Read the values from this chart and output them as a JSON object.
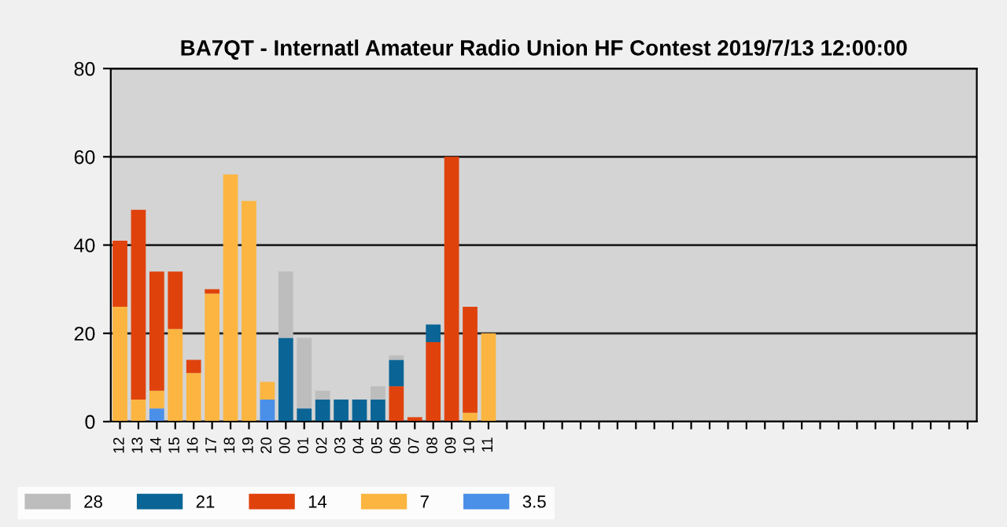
{
  "chart_data": {
    "type": "bar",
    "title": "BA7QT - Internatl Amateur Radio Union HF Contest 2019/7/13 12:00:00",
    "categories": [
      "12",
      "13",
      "14",
      "15",
      "16",
      "17",
      "18",
      "19",
      "20",
      "00",
      "01",
      "02",
      "03",
      "04",
      "05",
      "06",
      "07",
      "08",
      "09",
      "10",
      "11",
      null,
      null,
      null,
      null,
      null,
      null,
      null,
      null,
      null,
      null,
      null,
      null,
      null,
      null,
      null,
      null,
      null,
      null,
      null,
      null,
      null,
      null,
      null,
      null,
      null,
      null
    ],
    "stacked": true,
    "series": [
      {
        "name": "3.5",
        "color": "#4a90e8",
        "values": [
          0,
          0,
          3,
          0,
          0,
          0,
          0,
          0,
          5,
          0,
          0,
          0,
          0,
          0,
          0,
          0,
          0,
          0,
          0,
          0,
          0,
          null,
          null,
          null,
          null,
          null,
          null,
          null,
          null,
          null,
          null,
          null,
          null,
          null,
          null,
          null,
          null,
          null,
          null,
          null,
          null,
          null,
          null,
          null,
          null,
          null,
          null
        ]
      },
      {
        "name": "7",
        "color": "#fbb540",
        "values": [
          26,
          5,
          4,
          21,
          11,
          29,
          56,
          50,
          4,
          0,
          0,
          0,
          0,
          0,
          0,
          0,
          0,
          0,
          0,
          2,
          20,
          null,
          null,
          null,
          null,
          null,
          null,
          null,
          null,
          null,
          null,
          null,
          null,
          null,
          null,
          null,
          null,
          null,
          null,
          null,
          null,
          null,
          null,
          null,
          null,
          null,
          null
        ]
      },
      {
        "name": "14",
        "color": "#e0420c",
        "values": [
          15,
          43,
          27,
          13,
          3,
          1,
          0,
          0,
          0,
          0,
          0,
          0,
          0,
          0,
          0,
          8,
          1,
          18,
          60,
          24,
          0,
          null,
          null,
          null,
          null,
          null,
          null,
          null,
          null,
          null,
          null,
          null,
          null,
          null,
          null,
          null,
          null,
          null,
          null,
          null,
          null,
          null,
          null,
          null,
          null,
          null,
          null
        ]
      },
      {
        "name": "21",
        "color": "#0a6596",
        "values": [
          0,
          0,
          0,
          0,
          0,
          0,
          0,
          0,
          0,
          19,
          3,
          5,
          5,
          5,
          5,
          6,
          0,
          4,
          0,
          0,
          0,
          null,
          null,
          null,
          null,
          null,
          null,
          null,
          null,
          null,
          null,
          null,
          null,
          null,
          null,
          null,
          null,
          null,
          null,
          null,
          null,
          null,
          null,
          null,
          null,
          null,
          null
        ]
      },
      {
        "name": "28",
        "color": "#bdbdbd",
        "values": [
          0,
          0,
          0,
          0,
          0,
          0,
          0,
          0,
          0,
          15,
          16,
          2,
          0,
          0,
          3,
          1,
          0,
          0,
          0,
          0,
          0,
          null,
          null,
          null,
          null,
          null,
          null,
          null,
          null,
          null,
          null,
          null,
          null,
          null,
          null,
          null,
          null,
          null,
          null,
          null,
          null,
          null,
          null,
          null,
          null,
          null,
          null
        ]
      }
    ],
    "ylim": [
      0,
      80
    ],
    "yticks": [
      0,
      20,
      40,
      60,
      80
    ],
    "grid": "y",
    "legend": "bottom left"
  }
}
